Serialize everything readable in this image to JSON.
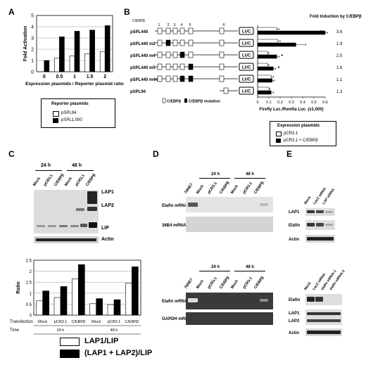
{
  "panels": {
    "a": "A",
    "b": "B",
    "c": "C",
    "d": "D",
    "e": "E"
  },
  "panelA": {
    "ylabel": "Fold Activation",
    "xlabel": "Expression plasmids / Reporter plasmid ratio",
    "legend_title": "Reporter plasmids",
    "legend": [
      "pSPL94",
      "pSPL1,000"
    ]
  },
  "panelB": {
    "header": "C/EBPβ",
    "site_numbers": [
      "1",
      "2",
      "3",
      "4",
      "5",
      "6"
    ],
    "constructs": [
      "pSPL440",
      "pSPL440 m2",
      "pSPL440 m4",
      "pSPL440 m5",
      "pSPL440 m4m5",
      "pSPL94"
    ],
    "luc": "LUC",
    "fold_title": "Fold Induction by C/EBPβ",
    "folds": [
      "3.6",
      "1.9",
      "2.0",
      "1.6",
      "1.1",
      "1.3"
    ],
    "sig": [
      "**",
      "",
      "*",
      "*",
      "",
      ""
    ],
    "xlabel": "Firefly Luc./Renilla Luc. (x1,000)",
    "xticks": [
      "0",
      "0.1",
      "0.2",
      "0.3",
      "0.4",
      "0.5",
      "0.6"
    ],
    "site_legend": [
      "C/EBPβ",
      "C/EBPβ mutation"
    ],
    "expr_title": "Expression plasmids",
    "expr_legend": [
      "pCR3.1",
      "pCR3.1 + C/EBPβ"
    ]
  },
  "panelC": {
    "times": [
      "24 h",
      "48 h"
    ],
    "lanes": [
      "Mock",
      "pCR3.1",
      "C/EBPβ",
      "Mock",
      "pCR3.1",
      "C/EBPβ"
    ],
    "bands": [
      "LAP1",
      "LAP2",
      "LIP",
      "Actin"
    ],
    "ylabel": "Ratio",
    "transfection_label": "Transfection",
    "time_label": "Time",
    "legend": [
      "LAP1/LIP",
      "(LAP1 + LAP2)/LIP"
    ]
  },
  "panelD": {
    "col0": "76NE7",
    "times": [
      "24 h",
      "48 h"
    ],
    "lanes": [
      "Mock",
      "pCR3.1",
      "C/EBPβ",
      "Mock",
      "pCR3.1",
      "C/EBPβ"
    ],
    "rows_top": [
      "Elafin mRNA",
      "36B4 mRNA"
    ],
    "rows_bottom": [
      "Elafin mRNA",
      "GAPDH mRNA"
    ]
  },
  "panelE": {
    "lanes_top": [
      "Mock",
      "LacZ siRNA",
      "LAP siRNA"
    ],
    "rows_top": [
      "LAP1",
      "Elafin",
      "Actin"
    ],
    "lanes_bottom": [
      "Mock",
      "LacZ siRNA",
      "elafin siRNA-1",
      "elafin siRNA-2"
    ],
    "rows_bottom": [
      "Elafin",
      "LAP1",
      "LAP2",
      "Actin"
    ]
  },
  "chart_data": [
    {
      "type": "bar",
      "panel": "A",
      "ylabel": "Fold Activation",
      "xlabel": "Expression plasmids / Reporter plasmid ratio",
      "categories": [
        "0",
        "0.5",
        "1",
        "1.5",
        "2"
      ],
      "ylim": [
        0,
        5
      ],
      "yticks": [
        "0",
        "1",
        "2",
        "3",
        "4",
        "5"
      ],
      "series": [
        {
          "name": "pSPL94",
          "values": [
            0,
            1.2,
            1.4,
            1.6,
            1.8
          ],
          "color": "#ffffff"
        },
        {
          "name": "pSPL1,000",
          "values": [
            1,
            3.1,
            3.6,
            3.7,
            4.1
          ],
          "color": "#000000"
        }
      ]
    },
    {
      "type": "bar",
      "panel": "B",
      "orientation": "horizontal",
      "xlabel": "Firefly Luc./Renilla Luc. (x1,000)",
      "categories": [
        "pSPL440",
        "pSPL440 m2",
        "pSPL440 m4",
        "pSPL440 m5",
        "pSPL440 m4m5",
        "pSPL94"
      ],
      "xlim": [
        0,
        0.6
      ],
      "series": [
        {
          "name": "pCR3.1",
          "values": [
            0.17,
            0.18,
            0.09,
            0.09,
            0.12,
            0.1
          ],
          "errors": [
            0.02,
            0.02,
            0.01,
            0.01,
            0.02,
            0.01
          ],
          "color": "#ffffff"
        },
        {
          "name": "pCR3.1 + C/EBPβ",
          "values": [
            0.6,
            0.34,
            0.17,
            0.14,
            0.13,
            0.12
          ],
          "errors": [
            0.02,
            0.09,
            0.02,
            0.02,
            0.02,
            0.02
          ],
          "color": "#000000"
        }
      ]
    },
    {
      "type": "bar",
      "panel": "C",
      "ylabel": "Ratio",
      "categories": [
        "Mock 24 h",
        "pCR3.1 24 h",
        "C/EBPβ 24 h",
        "Mock 48 h",
        "pCR3.1 48 h",
        "C/EBPβ 48 h"
      ],
      "ylim": [
        0,
        2.5
      ],
      "yticks": [
        "0",
        "0.5",
        "1",
        "1.5",
        "2",
        "2.5"
      ],
      "series": [
        {
          "name": "LAP1/LIP",
          "values": [
            0.65,
            0.8,
            1.65,
            0.52,
            0.48,
            1.45
          ],
          "color": "#ffffff"
        },
        {
          "name": "(LAP1 + LAP2)/LIP",
          "values": [
            1.1,
            1.3,
            2.3,
            0.75,
            0.7,
            2.2
          ],
          "color": "#000000"
        }
      ]
    }
  ]
}
